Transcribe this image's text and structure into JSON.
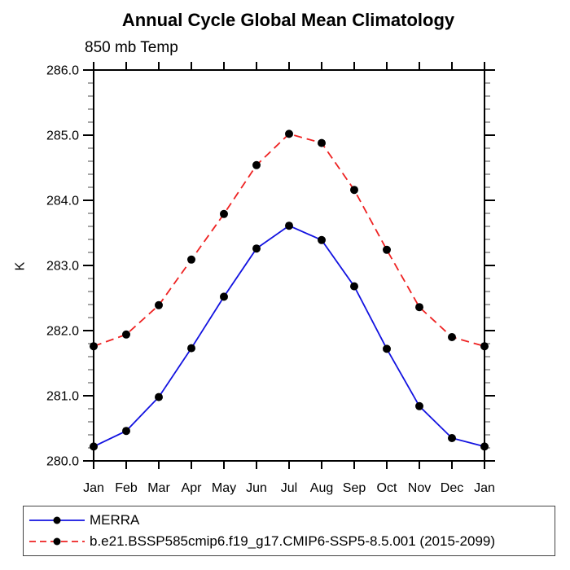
{
  "title": "Annual Cycle Global Mean Climatology",
  "subtitle": "850 mb Temp",
  "chart_data": {
    "type": "line",
    "x_categories": [
      "Jan",
      "Feb",
      "Mar",
      "Apr",
      "May",
      "Jun",
      "Jul",
      "Aug",
      "Sep",
      "Oct",
      "Nov",
      "Dec",
      "Jan"
    ],
    "xlabel": "",
    "ylabel": "K",
    "ylim": [
      280.0,
      286.0
    ],
    "y_major_step": 1.0,
    "y_minor_step": 0.2,
    "y_tick_labels": [
      "280.0",
      "281.0",
      "282.0",
      "283.0",
      "284.0",
      "285.0",
      "286.0"
    ],
    "grid": false,
    "legend_position": "bottom-left-outside",
    "frame_color": "#000000",
    "minor_tick_color": "#777777",
    "marker_color": "#000000",
    "series": [
      {
        "name": "MERRA",
        "color": "#1212e0",
        "line_style": "solid",
        "marker": "filled-circle",
        "values": [
          280.22,
          280.46,
          280.98,
          281.73,
          282.52,
          283.26,
          283.61,
          283.39,
          282.68,
          281.72,
          280.84,
          280.35,
          280.22
        ]
      },
      {
        "name": "b.e21.BSSP585cmip6.f19_g17.CMIP6-SSP5-8.5.001 (2015-2099)",
        "color": "#ee2222",
        "line_style": "dashed",
        "marker": "filled-circle",
        "values": [
          281.76,
          281.94,
          282.39,
          283.09,
          283.79,
          284.54,
          285.02,
          284.88,
          284.16,
          283.24,
          282.36,
          281.9,
          281.76
        ]
      }
    ]
  }
}
